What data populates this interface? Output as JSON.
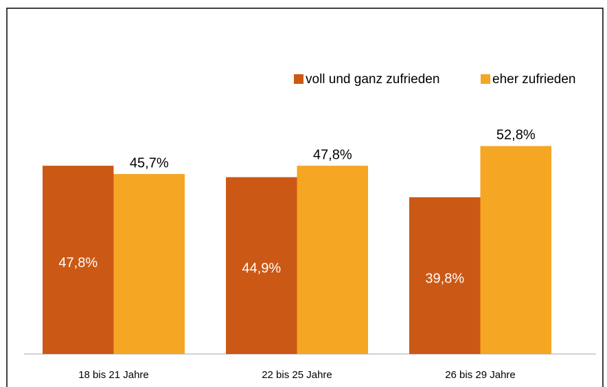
{
  "chart_data": {
    "type": "bar",
    "categories": [
      "18 bis 21 Jahre",
      "22 bis 25 Jahre",
      "26 bis 29 Jahre"
    ],
    "series": [
      {
        "name": "voll und ganz zufrieden",
        "color": "#cc5815",
        "values": [
          47.8,
          44.9,
          39.8
        ],
        "value_labels": [
          "47,8%",
          "44,9%",
          "39,8%"
        ]
      },
      {
        "name": "eher zufrieden",
        "color": "#f5a623",
        "values": [
          45.7,
          47.8,
          52.8
        ],
        "value_labels": [
          "45,7%",
          "47,8%",
          "52,8%"
        ]
      }
    ],
    "legend": "top-right",
    "grid": false
  }
}
